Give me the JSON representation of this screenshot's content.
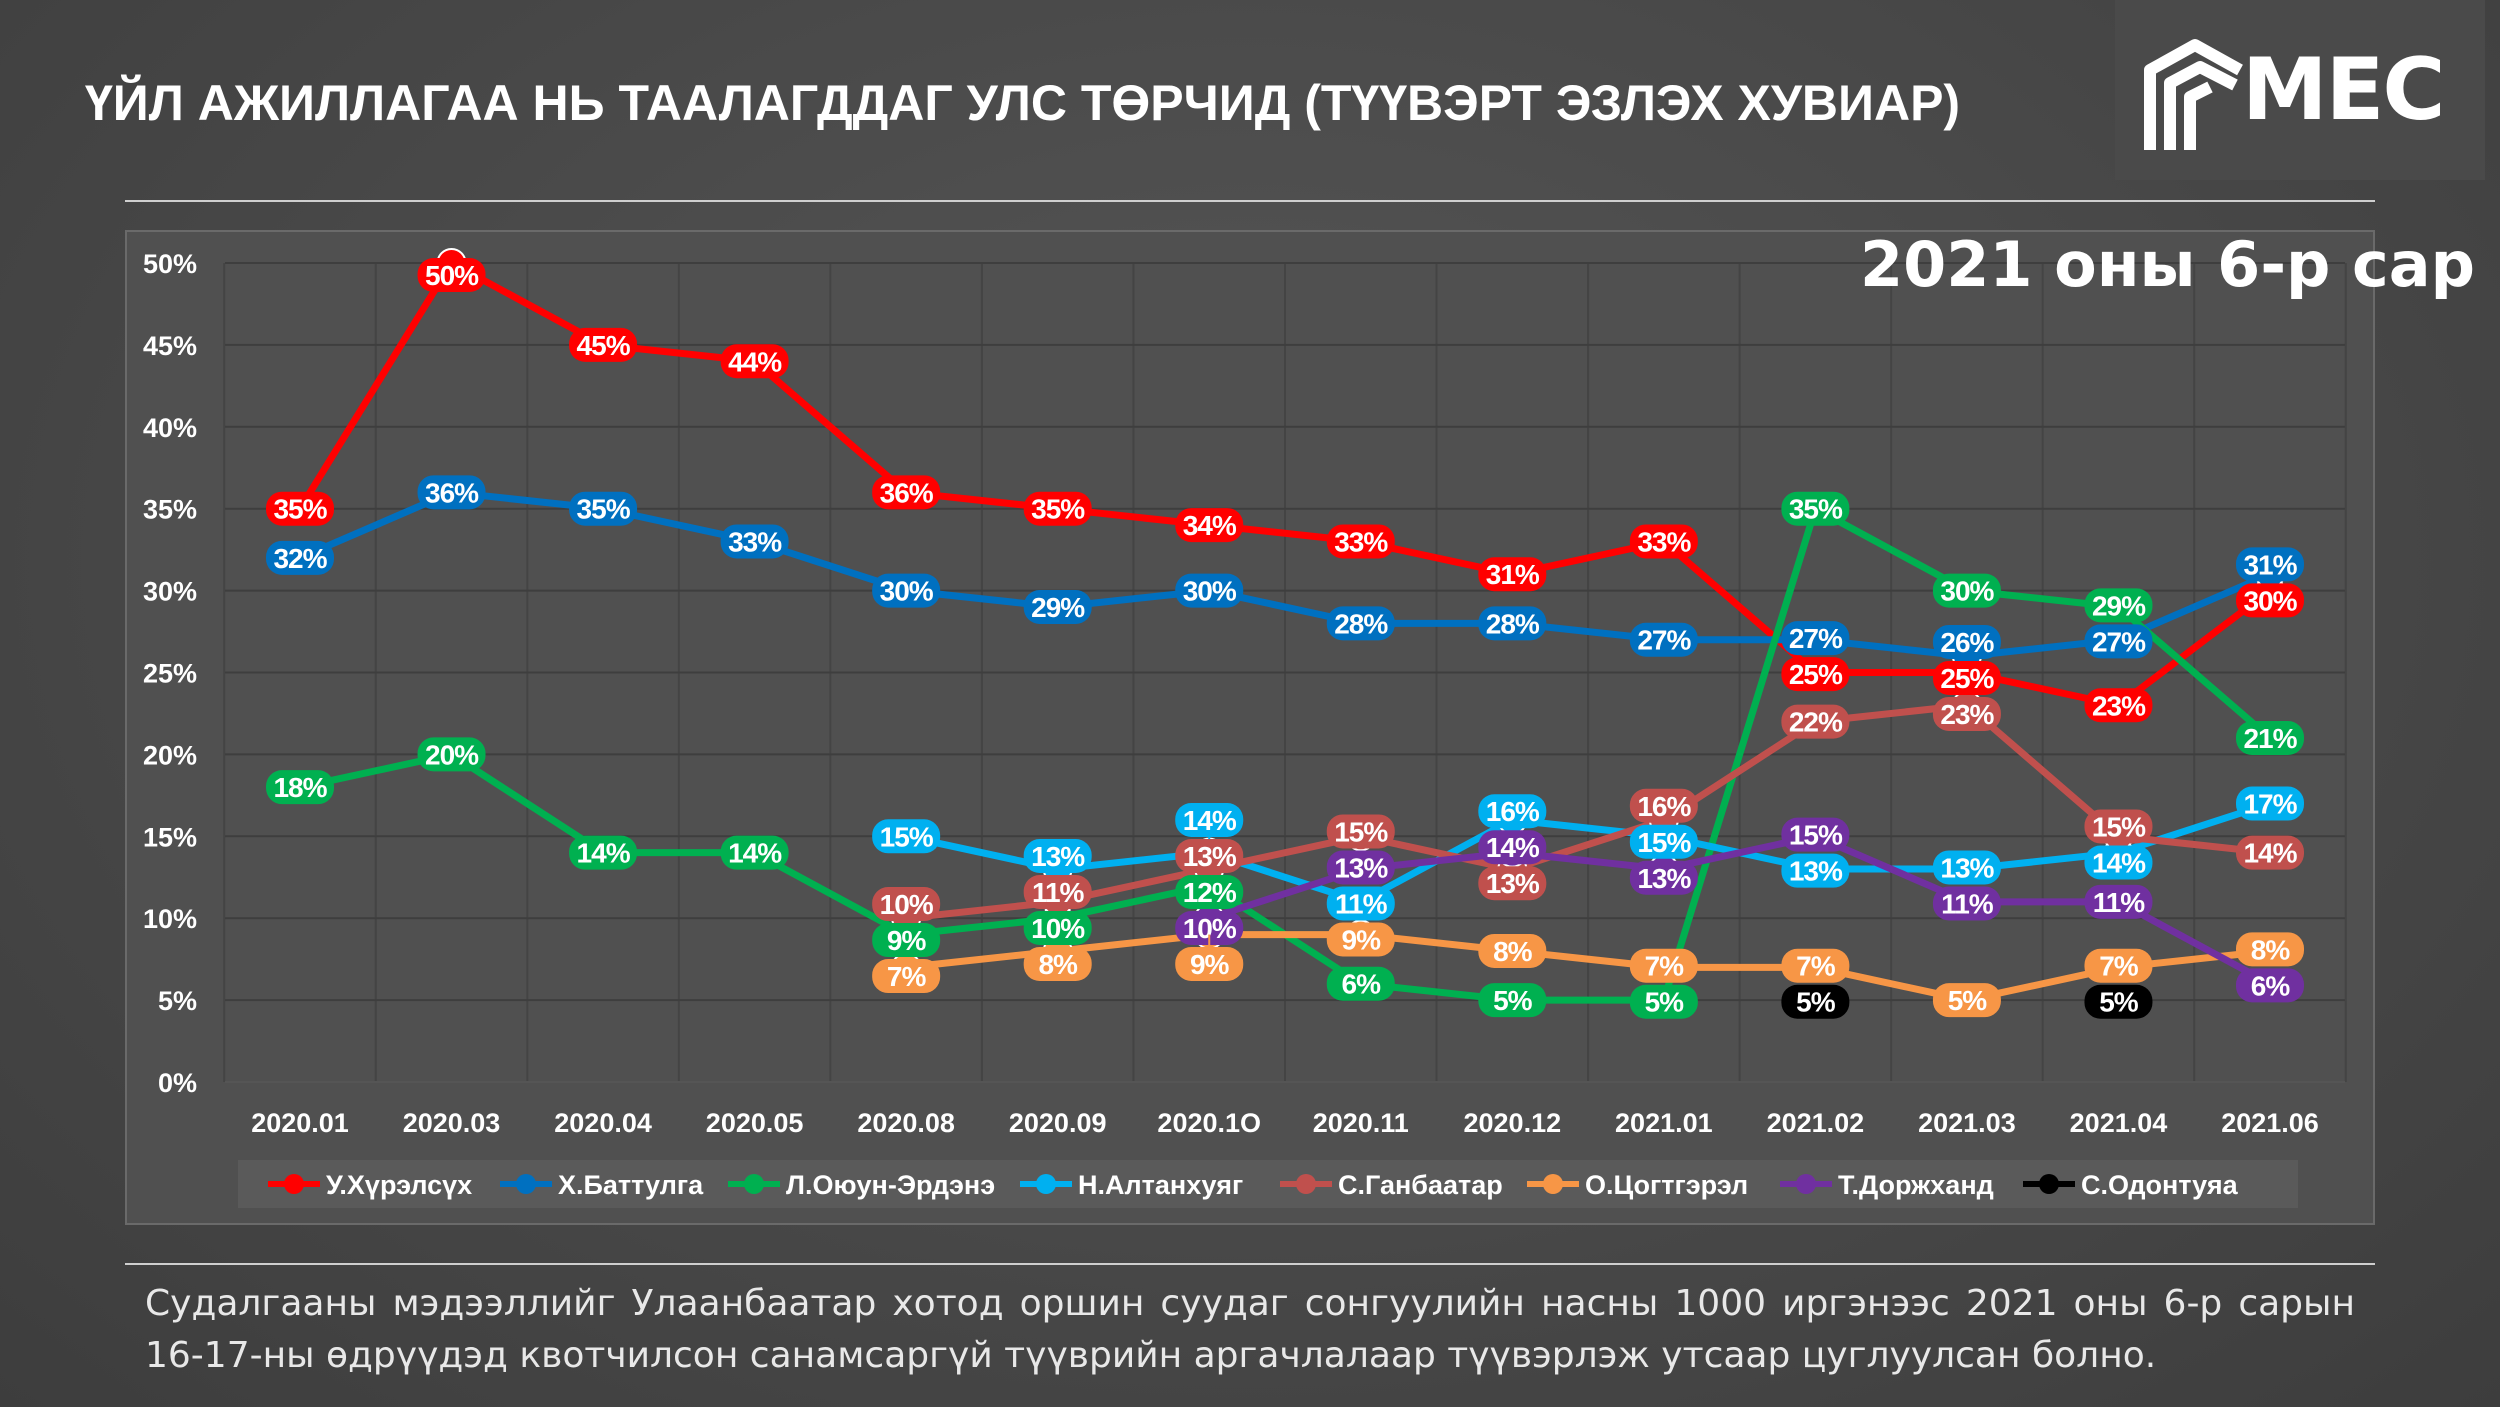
{
  "header": {
    "title": "ҮЙЛ АЖИЛЛАГАА НЬ ТААЛАГДДАГ УЛС ТӨРЧИД (ТҮҮВЭРТ ЭЗЛЭХ ХУВИАР)",
    "logo_text": "MEC"
  },
  "period": "2021 оны 6-р сар",
  "footer": "Судалгааны мэдээллийг Улаанбаатар хотод оршин суудаг сонгуулийн насны 1000 иргэнээс 2021 оны 6-р сарын 16-17-ны өдрүүдэд квотчилсон санамсаргүй түүврийн аргачлалаар түүвэрлэж утсаар цуглуулсан болно.",
  "chart_data": {
    "type": "line",
    "title": "ҮЙЛ АЖИЛЛАГАА НЬ ТААЛАГДДАГ УЛС ТӨРЧИД (ТҮҮВЭРТ ЭЗЛЭХ ХУВИАР)",
    "xlabel": "",
    "ylabel": "",
    "ylim": [
      0,
      50
    ],
    "yticks": [
      "0%",
      "5%",
      "10%",
      "15%",
      "20%",
      "25%",
      "30%",
      "35%",
      "40%",
      "45%",
      "50%"
    ],
    "grid": true,
    "legend": "bottom",
    "categories": [
      "2020.01",
      "2020.03",
      "2020.04",
      "2020.05",
      "2020.08",
      "2020.09",
      "2020.1O",
      "2020.11",
      "2020.12",
      "2021.01",
      "2021.02",
      "2021.03",
      "2021.04",
      "2021.06"
    ],
    "series": [
      {
        "name": "У.Хүрэлсүх",
        "color": "#ff0000",
        "values": [
          35,
          50,
          45,
          44,
          36,
          35,
          34,
          33,
          31,
          33,
          25,
          25,
          23,
          30
        ]
      },
      {
        "name": "Х.Баттулга",
        "color": "#0070c0",
        "values": [
          32,
          36,
          35,
          33,
          30,
          29,
          30,
          28,
          28,
          27,
          27,
          26,
          27,
          31
        ]
      },
      {
        "name": "Л.Оюун-Эрдэнэ",
        "color": "#00b050",
        "values": [
          18,
          20,
          14,
          14,
          9,
          10,
          12,
          6,
          5,
          5,
          35,
          30,
          29,
          21
        ]
      },
      {
        "name": "Н.Алтанхуяг",
        "color": "#00b0f0",
        "values": [
          null,
          null,
          null,
          null,
          15,
          13,
          14,
          11,
          16,
          15,
          13,
          13,
          14,
          17
        ]
      },
      {
        "name": "С.Ганбаатар",
        "color": "#c0504d",
        "values": [
          null,
          null,
          null,
          null,
          10,
          11,
          13,
          15,
          13,
          16,
          22,
          23,
          15,
          14
        ]
      },
      {
        "name": "О.Цогтгэрэл",
        "color": "#f79646",
        "values": [
          null,
          null,
          null,
          null,
          7,
          8,
          9,
          9,
          8,
          7,
          7,
          5,
          7,
          8
        ]
      },
      {
        "name": "Т.Доржханд",
        "color": "#7030a0",
        "values": [
          null,
          null,
          null,
          null,
          null,
          null,
          10,
          13,
          14,
          13,
          15,
          11,
          11,
          6
        ]
      },
      {
        "name": "С.Одонтуяа",
        "color": "#000000",
        "values": [
          null,
          null,
          null,
          null,
          null,
          null,
          null,
          null,
          null,
          null,
          5,
          null,
          5,
          null
        ]
      }
    ]
  }
}
